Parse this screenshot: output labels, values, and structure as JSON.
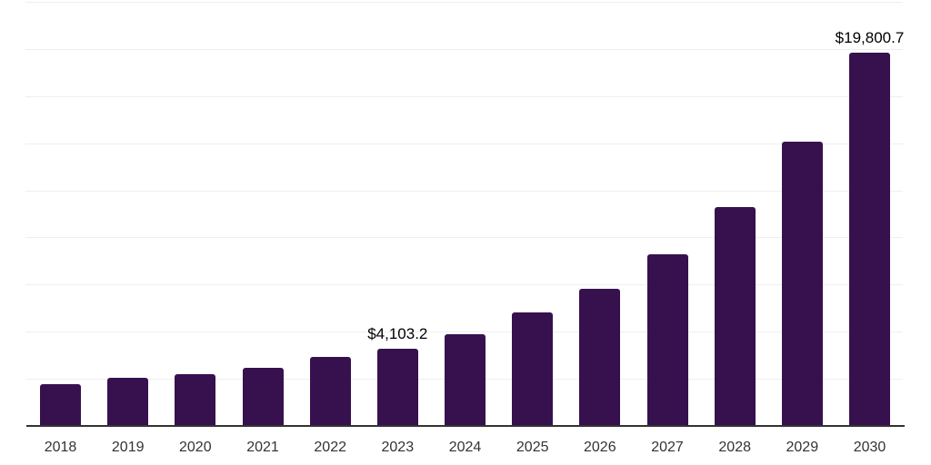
{
  "chart_data": {
    "type": "bar",
    "title": "",
    "xlabel": "",
    "ylabel": "",
    "categories": [
      "2018",
      "2019",
      "2020",
      "2021",
      "2022",
      "2023",
      "2024",
      "2025",
      "2026",
      "2027",
      "2028",
      "2029",
      "2030"
    ],
    "values": [
      2200,
      2540,
      2730,
      3100,
      3650,
      4103.2,
      4850,
      6010,
      7260,
      9110,
      11600,
      15080,
      19800.7
    ],
    "data_labels": {
      "2023": "$4,103.2",
      "2030": "$19,800.7"
    },
    "ylim": [
      0,
      22600
    ],
    "gridline_step": 2500,
    "grid": "horizontal",
    "legend": "none",
    "y_axis_labels_visible": false
  },
  "style": {
    "bar_color": "#37114E",
    "axis_line_color": "#333333",
    "gridline_color": "#EFEFEF",
    "tick_label_color": "#333333",
    "data_label_color": "#000000",
    "background_color": "#FFFFFF"
  }
}
